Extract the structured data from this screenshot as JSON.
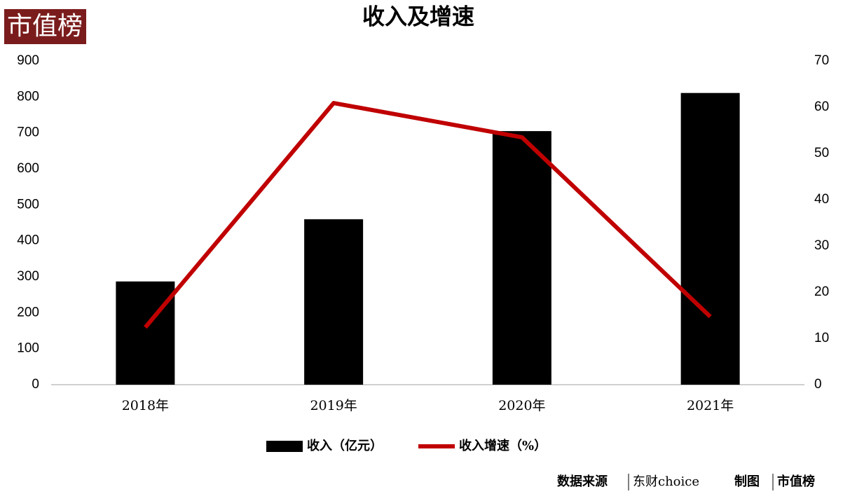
{
  "logo": "市值榜",
  "chart_data": {
    "type": "bar",
    "title": "收入及增速",
    "categories": [
      "2018年",
      "2019年",
      "2020年",
      "2021年"
    ],
    "series": [
      {
        "name": "收入（亿元）",
        "type": "bar",
        "color": "#000000",
        "values": [
          287,
          460,
          705,
          811
        ]
      },
      {
        "name": "收入增速（%）",
        "type": "line",
        "axis": "y2",
        "color": "#c00000",
        "values": [
          12.4,
          60.9,
          53.5,
          14.7
        ]
      }
    ],
    "ylim": [
      0,
      900
    ],
    "yticks": [
      0,
      100,
      200,
      300,
      400,
      500,
      600,
      700,
      800,
      900
    ],
    "y2lim": [
      0,
      70
    ],
    "y2ticks": [
      0,
      10,
      20,
      30,
      40,
      50,
      60,
      70
    ],
    "grid": false,
    "legend": "bottom"
  },
  "footer": {
    "source_label": "数据来源",
    "source": "东财choice",
    "made_label": "制图",
    "made_by": "市值榜"
  }
}
